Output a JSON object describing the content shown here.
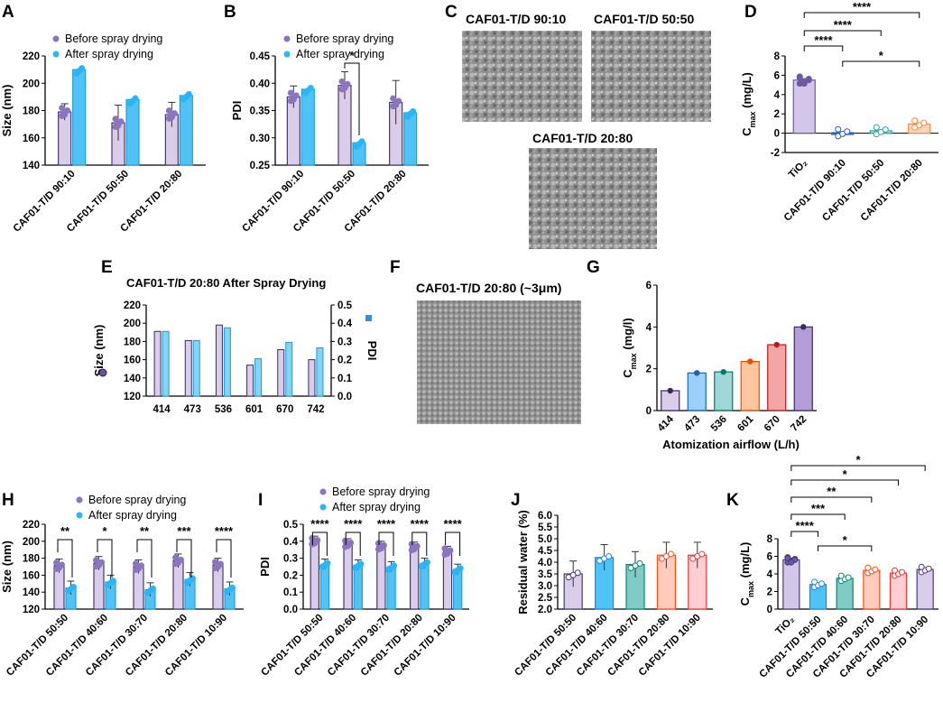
{
  "colors": {
    "before_bar": "#d9cdea",
    "before_edge": "#3a2a5a",
    "before_dot": "#8c74bf",
    "after_bar": "#4fc3f7",
    "after_edge": "#1b9bd1",
    "after_dot": "#29b6f6",
    "tio2_bar": "#d3c6ea",
    "tio2_dot": "#6b5aa6",
    "c9010": "#1e63d6",
    "c5050": "#2aa6a0",
    "c2080": "#ff8a3d",
    "c414": "#d9cdea",
    "c473": "#2196f3",
    "c536": "#2aa6a0",
    "c601": "#ff7f2a",
    "c670": "#e53935",
    "c742": "#b39ddb"
  },
  "chart_data": [
    {
      "id": "A",
      "type": "bar",
      "ylabel": "Size (nm)",
      "ylim": [
        140,
        220
      ],
      "ticks": [
        140,
        160,
        180,
        200,
        220
      ],
      "categories": [
        "CAF01-T/D 90:10",
        "CAF01-T/D 50:50",
        "CAF01-T/D 20:80"
      ],
      "series": [
        {
          "name": "Before spray drying",
          "values": [
            179,
            171,
            177
          ],
          "err": [
            6,
            13,
            9
          ]
        },
        {
          "name": "After spray drying",
          "values": [
            210,
            188,
            191
          ],
          "err": [
            0,
            0,
            0
          ]
        }
      ],
      "legend": [
        "Before spray drying",
        "After spray drying"
      ]
    },
    {
      "id": "B",
      "type": "bar",
      "ylabel": "PDI",
      "ylim": [
        0.25,
        0.45
      ],
      "ticks": [
        0.25,
        0.3,
        0.35,
        0.4,
        0.45
      ],
      "categories": [
        "CAF01-T/D 90:10",
        "CAF01-T/D 50:50",
        "CAF01-T/D 20:80"
      ],
      "series": [
        {
          "name": "Before spray drying",
          "values": [
            0.375,
            0.396,
            0.365
          ],
          "err": [
            0.02,
            0.025,
            0.04
          ]
        },
        {
          "name": "After spray drying",
          "values": [
            0.389,
            0.291,
            0.346
          ],
          "err": [
            0,
            0,
            0
          ]
        }
      ],
      "legend": [
        "Before spray drying",
        "After spray drying"
      ],
      "annotation": "*"
    },
    {
      "id": "D",
      "type": "bar",
      "ylabel": "C",
      "ylabel_sub": "max",
      "ylabel_unit": " (mg/L)",
      "ylim": [
        -2,
        8
      ],
      "ticks": [
        -2,
        0,
        2,
        4,
        6,
        8
      ],
      "categories": [
        "TiO₂",
        "CAF01-T/D 90:10",
        "CAF01-T/D 50:50",
        "CAF01-T/D 20:80"
      ],
      "values": [
        5.5,
        0.05,
        0.25,
        0.95
      ],
      "significance": [
        "****",
        "****",
        "****",
        "*"
      ]
    },
    {
      "id": "E",
      "type": "bar",
      "title": "CAF01-T/D 20:80 After Spray Drying",
      "ylabel": "Size (nm)",
      "ylabel2": "PDI",
      "ylim": [
        120,
        220
      ],
      "y2lim": [
        0,
        0.5
      ],
      "ticks": [
        120,
        140,
        160,
        180,
        200,
        220
      ],
      "ticks2": [
        0.0,
        0.1,
        0.2,
        0.3,
        0.4,
        0.5
      ],
      "categories": [
        "414",
        "473",
        "536",
        "601",
        "670",
        "742"
      ],
      "series": [
        {
          "name": "Size",
          "values": [
            191,
            181,
            198,
            154,
            171,
            160
          ]
        },
        {
          "name": "PDI",
          "values": [
            0.355,
            0.305,
            0.375,
            0.205,
            0.295,
            0.265
          ]
        }
      ]
    },
    {
      "id": "G",
      "type": "bar",
      "ylabel": "C",
      "ylabel_sub": "max",
      "ylabel_unit": " (mg/l)",
      "xlabel": "Atomization airflow (L/h)",
      "ylim": [
        0,
        6
      ],
      "ticks": [
        0,
        2,
        4,
        6
      ],
      "categories": [
        "414",
        "473",
        "536",
        "601",
        "670",
        "742"
      ],
      "values": [
        0.95,
        1.8,
        1.85,
        2.35,
        3.15,
        4.0
      ]
    },
    {
      "id": "H",
      "type": "bar",
      "ylabel": "Size (nm)",
      "ylim": [
        120,
        220
      ],
      "ticks": [
        120,
        140,
        160,
        180,
        200,
        220
      ],
      "categories": [
        "CAF01-T/D 50:50",
        "CAF01-T/D 40:60",
        "CAF01-T/D 30:70",
        "CAF01-T/D 20:80",
        "CAF01-T/D 10:90"
      ],
      "series": [
        {
          "name": "Before spray drying",
          "values": [
            171,
            174,
            170,
            177,
            172
          ]
        },
        {
          "name": "After spray drying",
          "values": [
            145,
            152,
            143,
            155,
            144
          ]
        }
      ],
      "legend": [
        "Before spray drying",
        "After spray drying"
      ],
      "significance": [
        "**",
        "*",
        "**",
        "***",
        "****"
      ]
    },
    {
      "id": "I",
      "type": "bar",
      "ylabel": "PDI",
      "ylim": [
        0.0,
        0.5
      ],
      "ticks": [
        0.0,
        0.1,
        0.2,
        0.3,
        0.4,
        0.5
      ],
      "categories": [
        "CAF01-T/D 50:50",
        "CAF01-T/D 40:60",
        "CAF01-T/D 30:70",
        "CAF01-T/D 20:80",
        "CAF01-T/D 10:90"
      ],
      "series": [
        {
          "name": "Before spray drying",
          "values": [
            0.4,
            0.385,
            0.37,
            0.365,
            0.34
          ]
        },
        {
          "name": "After spray drying",
          "values": [
            0.265,
            0.26,
            0.25,
            0.27,
            0.235
          ]
        }
      ],
      "legend": [
        "Before spray drying",
        "After spray drying"
      ],
      "significance": [
        "****",
        "****",
        "****",
        "****",
        "****"
      ]
    },
    {
      "id": "J",
      "type": "bar",
      "ylabel": "Residual water (%)",
      "ylim": [
        2.0,
        6.0
      ],
      "ticks": [
        2.0,
        2.5,
        3.0,
        3.5,
        4.0,
        4.5,
        5.0,
        5.5,
        6.0
      ],
      "categories": [
        "CAF01-T/D 50:50",
        "CAF01-T/D 40:60",
        "CAF01-T/D 30:70",
        "CAF01-T/D 20:80",
        "CAF01-T/D 10:90"
      ],
      "values": [
        3.5,
        4.2,
        3.9,
        4.3,
        4.3
      ]
    },
    {
      "id": "K",
      "type": "bar",
      "ylabel": "C",
      "ylabel_sub": "max",
      "ylabel_unit": " (mg/L)",
      "ylim": [
        0,
        8
      ],
      "ticks": [
        0,
        2,
        4,
        6,
        8
      ],
      "categories": [
        "TiO₂",
        "CAF01-T/D 50:50",
        "CAF01-T/D 40:60",
        "CAF01-T/D 30:70",
        "CAF01-T/D 20:80",
        "CAF01-T/D 10:90"
      ],
      "values": [
        5.6,
        2.8,
        3.5,
        4.4,
        4.1,
        4.5
      ],
      "significance": [
        "****",
        "***",
        "*",
        "**",
        "*",
        "*"
      ]
    }
  ],
  "panels": {
    "A": "A",
    "B": "B",
    "C": "C",
    "D": "D",
    "E": "E",
    "F": "F",
    "G": "G",
    "H": "H",
    "I": "I",
    "J": "J",
    "K": "K"
  },
  "sem": {
    "c1_title": "CAF01-T/D 90:10",
    "c2_title": "CAF01-T/D 50:50",
    "c3_title": "CAF01-T/D 20:80",
    "f_title": "CAF01-T/D 20:80 (~3μm)"
  }
}
